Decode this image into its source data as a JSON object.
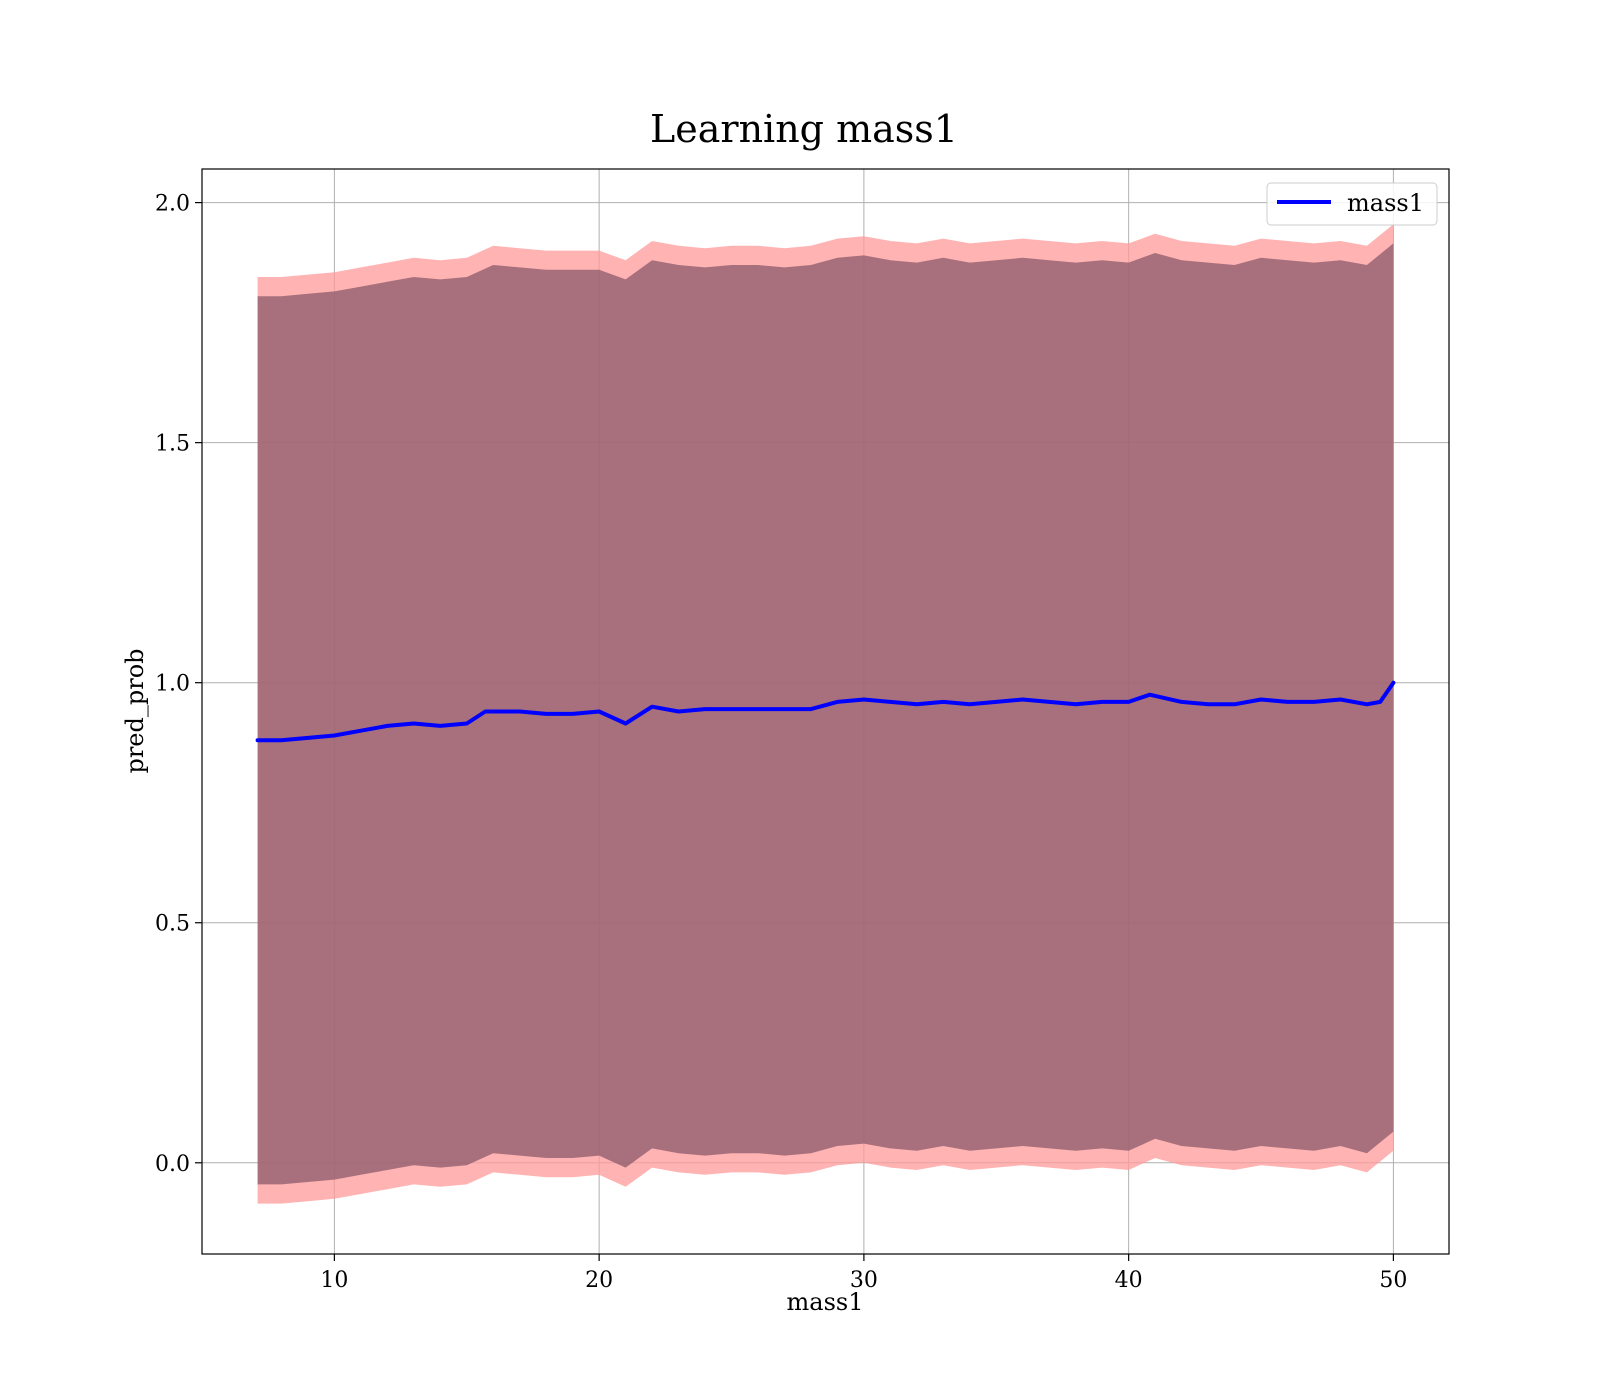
{
  "chart_data": {
    "type": "line",
    "title": "Learning mass1",
    "xlabel": "mass1",
    "ylabel": "pred_prob",
    "xlim": [
      5.0,
      52.1
    ],
    "ylim": [
      -0.19,
      2.07
    ],
    "xticks": [
      10,
      20,
      30,
      40,
      50
    ],
    "yticks": [
      0.0,
      0.5,
      1.0,
      1.5,
      2.0
    ],
    "xtick_labels": [
      "10",
      "20",
      "30",
      "40",
      "50"
    ],
    "ytick_labels": [
      "0.0",
      "0.5",
      "1.0",
      "1.5",
      "2.0"
    ],
    "grid": true,
    "legend": {
      "position": "top-right",
      "entries": [
        "mass1"
      ]
    },
    "series": [
      {
        "name": "mass1",
        "color": "#0000ff",
        "x": [
          7.1,
          8.0,
          9.0,
          10.0,
          11.0,
          12.0,
          13.0,
          14.0,
          15.0,
          15.7,
          17.0,
          18.0,
          19.0,
          20.0,
          21.0,
          22.0,
          23.0,
          24.0,
          25.0,
          26.0,
          27.0,
          28.0,
          29.0,
          30.0,
          31.0,
          32.0,
          33.0,
          34.0,
          35.0,
          36.0,
          37.0,
          38.0,
          39.0,
          40.0,
          40.8,
          42.0,
          43.0,
          44.0,
          45.0,
          46.0,
          47.0,
          48.0,
          49.0,
          49.5,
          50.0
        ],
        "y": [
          0.88,
          0.88,
          0.885,
          0.89,
          0.9,
          0.91,
          0.915,
          0.91,
          0.915,
          0.94,
          0.94,
          0.935,
          0.935,
          0.94,
          0.915,
          0.95,
          0.94,
          0.945,
          0.945,
          0.945,
          0.945,
          0.945,
          0.96,
          0.965,
          0.96,
          0.955,
          0.96,
          0.955,
          0.96,
          0.965,
          0.96,
          0.955,
          0.96,
          0.96,
          0.975,
          0.96,
          0.955,
          0.955,
          0.965,
          0.96,
          0.96,
          0.965,
          0.955,
          0.96,
          1.0
        ]
      }
    ],
    "bands": [
      {
        "label": "outer band",
        "color": "#ff9a9a",
        "opacity": 0.75,
        "x": [
          7.1,
          8.0,
          9.0,
          10.0,
          11.0,
          12.0,
          13.0,
          14.0,
          15.0,
          16.0,
          17.0,
          18.0,
          19.0,
          20.0,
          21.0,
          22.0,
          23.0,
          24.0,
          25.0,
          26.0,
          27.0,
          28.0,
          29.0,
          30.0,
          31.0,
          32.0,
          33.0,
          34.0,
          35.0,
          36.0,
          37.0,
          38.0,
          39.0,
          40.0,
          41.0,
          42.0,
          43.0,
          44.0,
          45.0,
          46.0,
          47.0,
          48.0,
          49.0,
          50.0
        ],
        "upper": [
          1.845,
          1.845,
          1.85,
          1.855,
          1.865,
          1.875,
          1.885,
          1.88,
          1.885,
          1.91,
          1.905,
          1.9,
          1.9,
          1.9,
          1.88,
          1.92,
          1.91,
          1.905,
          1.91,
          1.91,
          1.905,
          1.91,
          1.925,
          1.93,
          1.92,
          1.915,
          1.925,
          1.915,
          1.92,
          1.925,
          1.92,
          1.915,
          1.92,
          1.915,
          1.935,
          1.92,
          1.915,
          1.91,
          1.925,
          1.92,
          1.915,
          1.92,
          1.91,
          1.955
        ],
        "lower": [
          -0.085,
          -0.085,
          -0.08,
          -0.075,
          -0.065,
          -0.055,
          -0.045,
          -0.05,
          -0.045,
          -0.02,
          -0.025,
          -0.03,
          -0.03,
          -0.025,
          -0.05,
          -0.01,
          -0.02,
          -0.025,
          -0.02,
          -0.02,
          -0.025,
          -0.02,
          -0.005,
          0.0,
          -0.01,
          -0.015,
          -0.005,
          -0.015,
          -0.01,
          -0.005,
          -0.01,
          -0.015,
          -0.01,
          -0.015,
          0.01,
          -0.005,
          -0.01,
          -0.015,
          -0.005,
          -0.01,
          -0.015,
          -0.005,
          -0.02,
          0.025
        ]
      },
      {
        "label": "inner band",
        "color": "#8b5a6a",
        "opacity": 0.75,
        "x": [
          7.1,
          8.0,
          9.0,
          10.0,
          11.0,
          12.0,
          13.0,
          14.0,
          15.0,
          16.0,
          17.0,
          18.0,
          19.0,
          20.0,
          21.0,
          22.0,
          23.0,
          24.0,
          25.0,
          26.0,
          27.0,
          28.0,
          29.0,
          30.0,
          31.0,
          32.0,
          33.0,
          34.0,
          35.0,
          36.0,
          37.0,
          38.0,
          39.0,
          40.0,
          41.0,
          42.0,
          43.0,
          44.0,
          45.0,
          46.0,
          47.0,
          48.0,
          49.0,
          50.0
        ],
        "upper": [
          1.805,
          1.805,
          1.81,
          1.815,
          1.825,
          1.835,
          1.845,
          1.84,
          1.845,
          1.87,
          1.865,
          1.86,
          1.86,
          1.86,
          1.84,
          1.88,
          1.87,
          1.865,
          1.87,
          1.87,
          1.865,
          1.87,
          1.885,
          1.89,
          1.88,
          1.875,
          1.885,
          1.875,
          1.88,
          1.885,
          1.88,
          1.875,
          1.88,
          1.875,
          1.895,
          1.88,
          1.875,
          1.87,
          1.885,
          1.88,
          1.875,
          1.88,
          1.87,
          1.915
        ],
        "lower": [
          -0.045,
          -0.045,
          -0.04,
          -0.035,
          -0.025,
          -0.015,
          -0.005,
          -0.01,
          -0.005,
          0.02,
          0.015,
          0.01,
          0.01,
          0.015,
          -0.01,
          0.03,
          0.02,
          0.015,
          0.02,
          0.02,
          0.015,
          0.02,
          0.035,
          0.04,
          0.03,
          0.025,
          0.035,
          0.025,
          0.03,
          0.035,
          0.03,
          0.025,
          0.03,
          0.025,
          0.05,
          0.035,
          0.03,
          0.025,
          0.035,
          0.03,
          0.025,
          0.035,
          0.02,
          0.065
        ]
      }
    ]
  }
}
